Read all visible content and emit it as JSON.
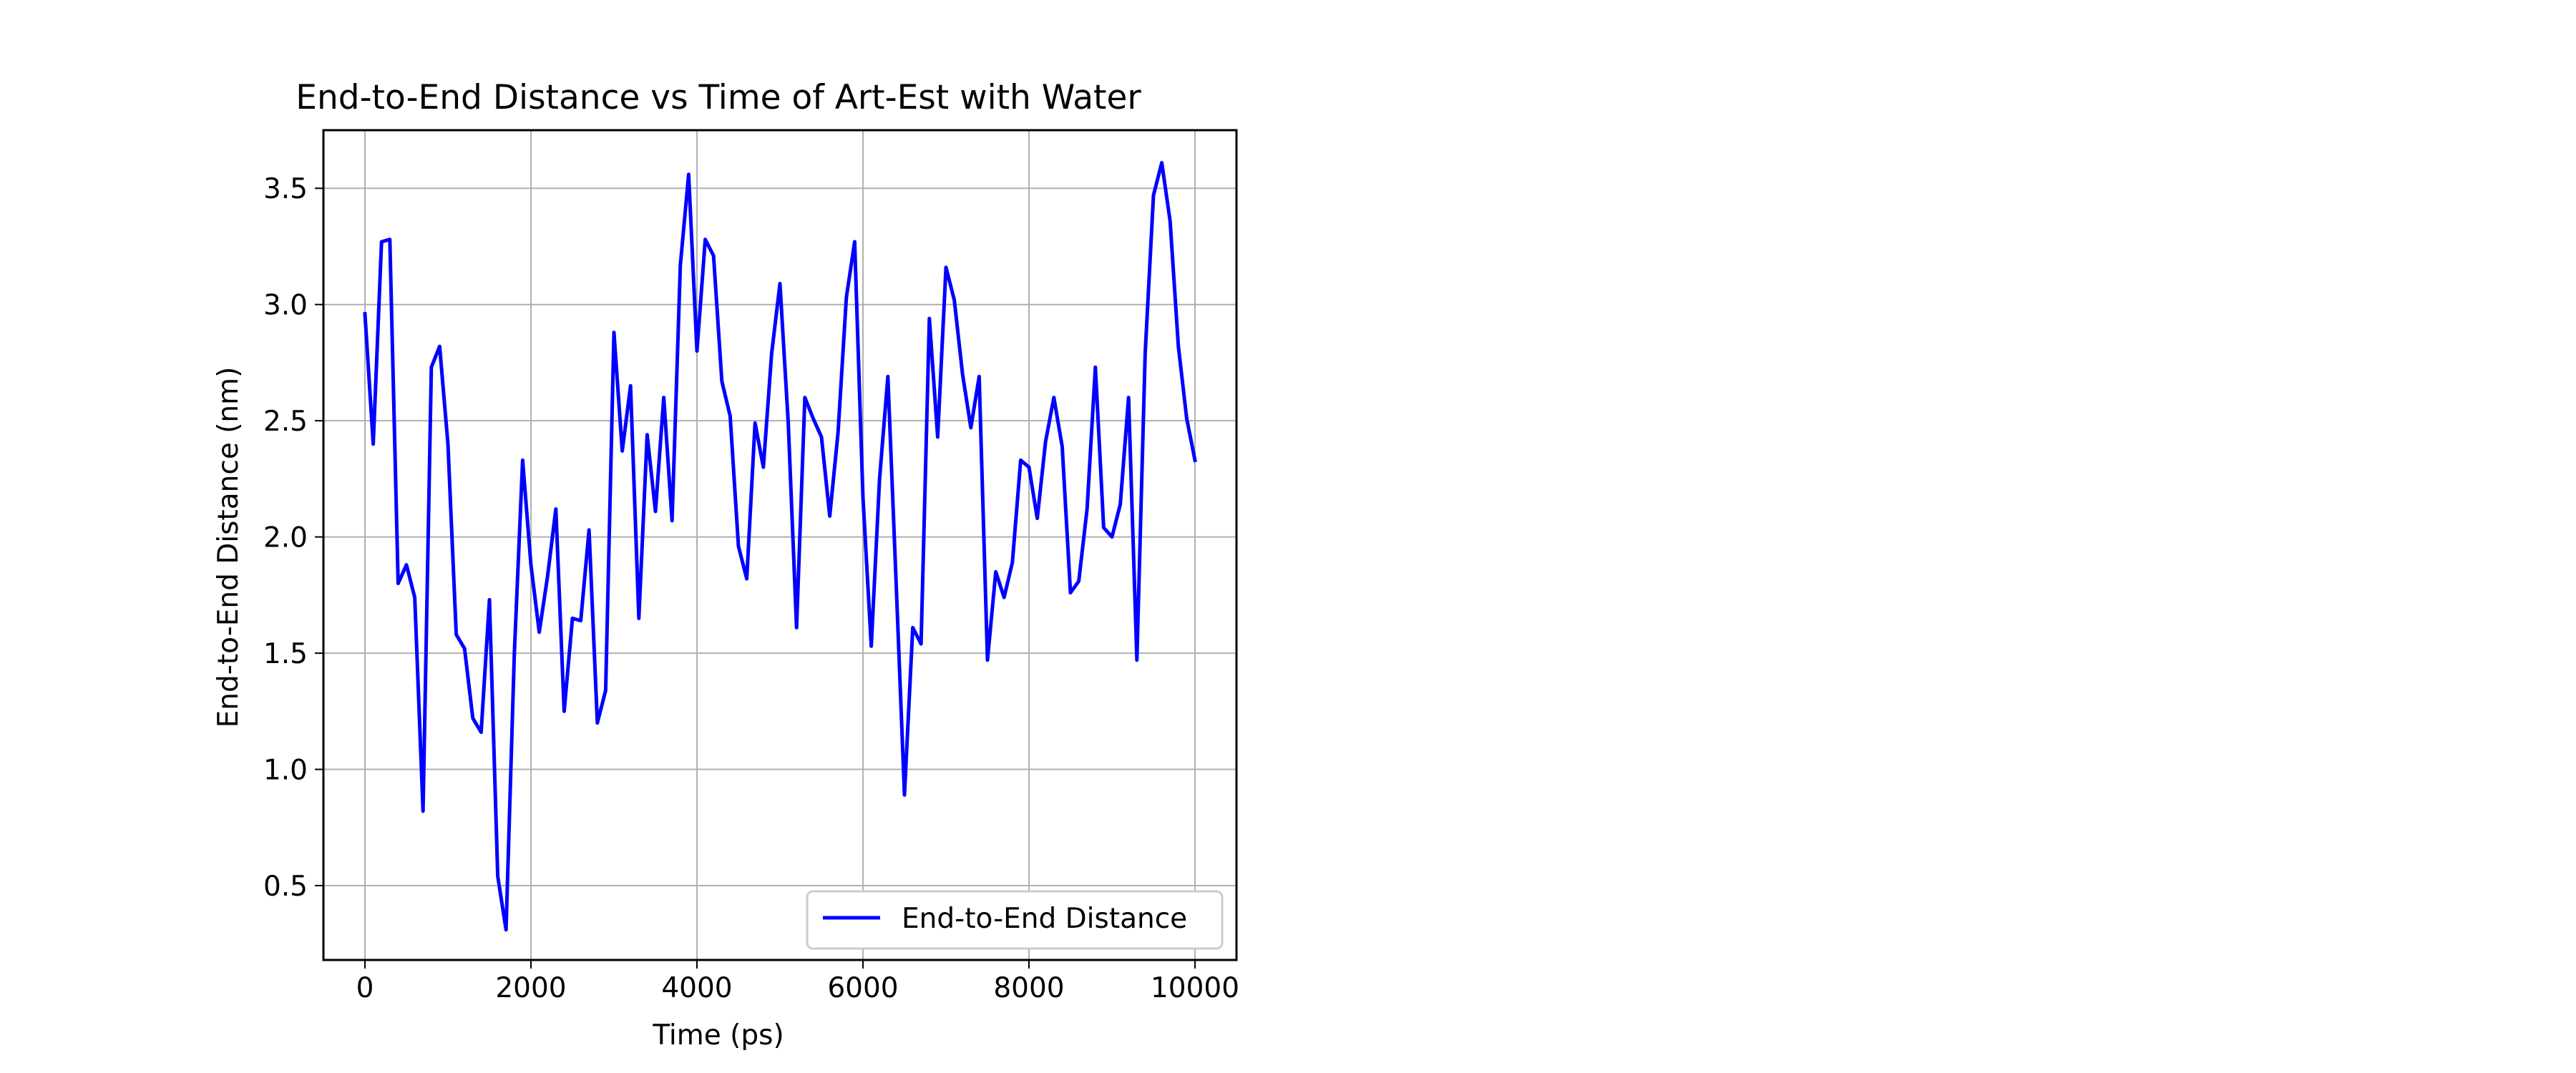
{
  "chart_data": {
    "type": "line",
    "title": "End-to-End Distance vs Time of Art-Est with Water",
    "xlabel": "Time (ps)",
    "ylabel": "End-to-End Distance (nm)",
    "xlim": [
      -500,
      10500
    ],
    "ylim": [
      0.18,
      3.75
    ],
    "x_ticks": [
      0,
      2000,
      4000,
      6000,
      8000,
      10000
    ],
    "x_tick_labels": [
      "0",
      "2000",
      "4000",
      "6000",
      "8000",
      "10000"
    ],
    "y_ticks": [
      0.5,
      1.0,
      1.5,
      2.0,
      2.5,
      3.0,
      3.5
    ],
    "y_tick_labels": [
      "0.5",
      "1.0",
      "1.5",
      "2.0",
      "2.5",
      "3.0",
      "3.5"
    ],
    "grid": true,
    "legend_position": "lower-right",
    "series": [
      {
        "name": "End-to-End Distance",
        "color": "#0000ff",
        "x": [
          0,
          100,
          200,
          300,
          400,
          500,
          600,
          700,
          800,
          900,
          1000,
          1100,
          1200,
          1300,
          1400,
          1500,
          1600,
          1700,
          1800,
          1900,
          2000,
          2100,
          2200,
          2300,
          2400,
          2500,
          2600,
          2700,
          2800,
          2900,
          3000,
          3100,
          3200,
          3300,
          3400,
          3500,
          3600,
          3700,
          3800,
          3900,
          4000,
          4100,
          4200,
          4300,
          4400,
          4500,
          4600,
          4700,
          4800,
          4900,
          5000,
          5100,
          5200,
          5300,
          5400,
          5500,
          5600,
          5700,
          5800,
          5900,
          6000,
          6100,
          6200,
          6300,
          6400,
          6500,
          6600,
          6700,
          6800,
          6900,
          7000,
          7100,
          7200,
          7300,
          7400,
          7500,
          7600,
          7700,
          7800,
          7900,
          8000,
          8100,
          8200,
          8300,
          8400,
          8500,
          8600,
          8700,
          8800,
          8900,
          9000,
          9100,
          9200,
          9300,
          9400,
          9500,
          9600,
          9700,
          9800,
          9900,
          10000
        ],
        "y": [
          2.96,
          2.4,
          3.27,
          3.28,
          1.8,
          1.88,
          1.74,
          0.82,
          2.73,
          2.82,
          2.4,
          1.58,
          1.52,
          1.22,
          1.16,
          1.73,
          0.54,
          0.31,
          1.5,
          2.33,
          1.88,
          1.59,
          1.83,
          2.12,
          1.25,
          1.65,
          1.64,
          2.03,
          1.2,
          1.34,
          2.88,
          2.37,
          2.65,
          1.65,
          2.44,
          2.11,
          2.6,
          2.07,
          3.17,
          3.56,
          2.8,
          3.28,
          3.21,
          2.67,
          2.52,
          1.96,
          1.82,
          2.49,
          2.3,
          2.79,
          3.09,
          2.49,
          1.61,
          2.6,
          2.51,
          2.43,
          2.09,
          2.45,
          3.03,
          3.27,
          2.17,
          1.53,
          2.25,
          2.69,
          1.8,
          0.89,
          1.61,
          1.54,
          2.94,
          2.43,
          3.16,
          3.02,
          2.7,
          2.47,
          2.69,
          1.47,
          1.85,
          1.74,
          1.89,
          2.33,
          2.3,
          2.08,
          2.41,
          2.6,
          2.39,
          1.76,
          1.81,
          2.12,
          2.73,
          2.04,
          2.0,
          2.14,
          2.6,
          1.47,
          2.79,
          3.47,
          3.61,
          3.36,
          2.82,
          2.51,
          2.33
        ]
      }
    ]
  }
}
